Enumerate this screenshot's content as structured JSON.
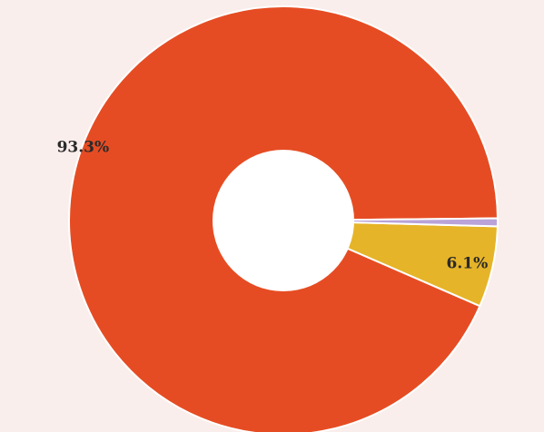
{
  "chart_data": {
    "type": "pie",
    "style": "donut",
    "categories": [
      "",
      "",
      ""
    ],
    "values": [
      93.3,
      6.1,
      0.6
    ],
    "labels": [
      "93.3%",
      "6.1%",
      ""
    ],
    "colors": [
      "#e64c23",
      "#e6b428",
      "#b9a3d8"
    ],
    "background": "#f9eeeb",
    "legend": "none",
    "title": ""
  }
}
